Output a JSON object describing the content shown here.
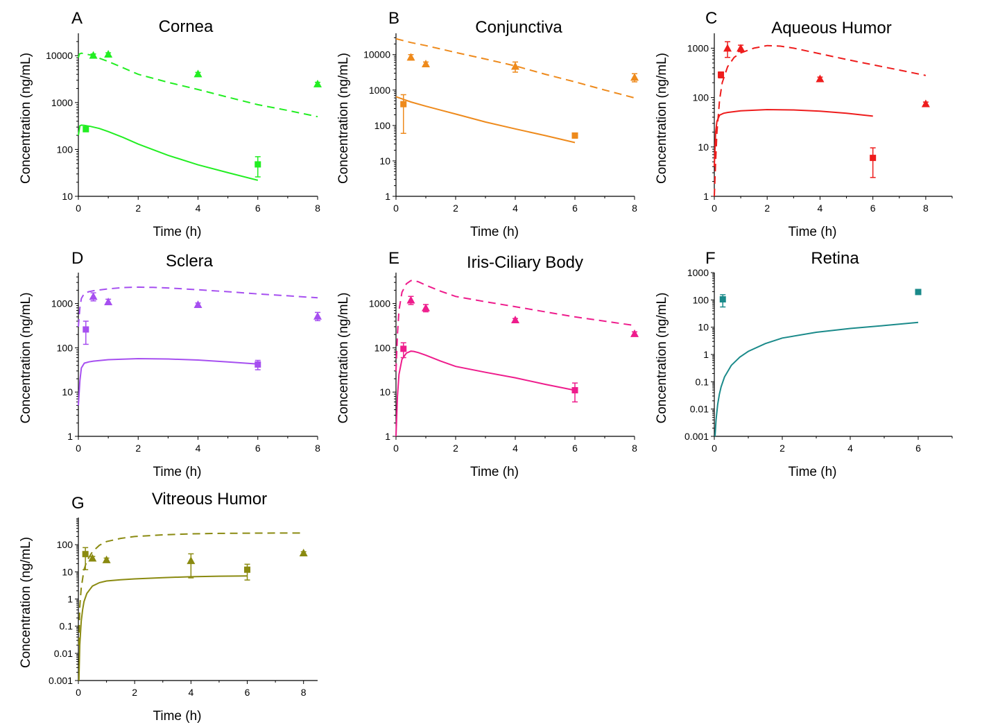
{
  "chart_data": [
    {
      "id": "A",
      "letter": "A",
      "type": "line",
      "title": "Cornea",
      "xlabel": "Time (h)",
      "ylabel": "Concentration (ng/mL)",
      "xlim": [
        0,
        8
      ],
      "xticks": [
        0,
        2,
        4,
        6,
        8
      ],
      "ylog": true,
      "ylim": [
        10,
        30000
      ],
      "yticks": [
        10,
        100,
        1000,
        10000
      ],
      "ytick_labels": [
        "10",
        "100",
        "1000",
        "10000"
      ],
      "color": "#22ee22",
      "series": [
        {
          "name": "dashed model",
          "style": "dashed",
          "x": [
            0,
            0.03,
            0.1,
            0.2,
            0.35,
            0.5,
            0.75,
            1,
            1.5,
            2,
            3,
            4,
            5,
            6,
            7,
            8
          ],
          "y": [
            9000,
            10800,
            11300,
            11000,
            10500,
            10000,
            8600,
            7500,
            5500,
            4000,
            2700,
            1900,
            1300,
            900,
            680,
            500
          ]
        },
        {
          "name": "solid model",
          "style": "solid",
          "x": [
            0,
            0.05,
            0.1,
            0.2,
            0.4,
            0.7,
            1,
            1.5,
            2,
            3,
            4,
            5,
            6
          ],
          "y": [
            200,
            320,
            330,
            325,
            310,
            280,
            240,
            180,
            130,
            75,
            47,
            32,
            22
          ]
        },
        {
          "name": "triangle observed",
          "style": "triangle",
          "x": [
            0.5,
            1,
            4,
            8
          ],
          "y": [
            10200,
            10800,
            4100,
            2500
          ],
          "err": [
            700,
            700,
            300,
            200
          ]
        },
        {
          "name": "square observed",
          "style": "square",
          "x": [
            0.25,
            6
          ],
          "y": [
            270,
            48
          ],
          "err": [
            30,
            22
          ]
        }
      ]
    },
    {
      "id": "B",
      "letter": "B",
      "type": "line",
      "title": "Conjunctiva",
      "xlabel": "Time (h)",
      "ylabel": "Concentration (ng/mL)",
      "xlim": [
        0,
        8
      ],
      "xticks": [
        0,
        2,
        4,
        6,
        8
      ],
      "ylog": true,
      "ylim": [
        1,
        40000
      ],
      "yticks": [
        1,
        10,
        100,
        1000,
        10000
      ],
      "ytick_labels": [
        "1",
        "10",
        "100",
        "1000",
        "10000"
      ],
      "color": "#ee8a1c",
      "series": [
        {
          "name": "dashed model",
          "style": "dashed",
          "x": [
            0,
            0.5,
            1,
            2,
            3,
            4,
            5,
            6,
            7,
            8
          ],
          "y": [
            28000,
            22000,
            18000,
            11500,
            7500,
            4800,
            2800,
            1700,
            1000,
            600
          ]
        },
        {
          "name": "solid model",
          "style": "solid",
          "x": [
            0,
            0.5,
            1,
            2,
            3,
            4,
            5,
            6
          ],
          "y": [
            650,
            460,
            350,
            210,
            125,
            80,
            52,
            33
          ]
        },
        {
          "name": "triangle observed",
          "style": "triangle",
          "x": [
            0.5,
            1,
            4,
            8
          ],
          "y": [
            8500,
            5500,
            4700,
            2300
          ],
          "err": [
            1500,
            700,
            1500,
            600
          ]
        },
        {
          "name": "square observed",
          "style": "square",
          "x": [
            0.25,
            6
          ],
          "y": [
            400,
            52
          ],
          "err": [
            340,
            8
          ]
        }
      ]
    },
    {
      "id": "C",
      "letter": "C",
      "type": "line",
      "title": "Aqueous Humor",
      "xlabel": "Time (h)",
      "ylabel": "Concentration (ng/mL)",
      "xlim": [
        0,
        9
      ],
      "xticks": [
        0,
        2,
        4,
        6,
        8
      ],
      "ylog": true,
      "ylim": [
        1,
        2000
      ],
      "yticks": [
        1,
        10,
        100,
        1000
      ],
      "ytick_labels": [
        "1",
        "10",
        "100",
        "1000"
      ],
      "color": "#ee1c1c",
      "series": [
        {
          "name": "dashed model",
          "style": "dashed",
          "x": [
            0,
            0.05,
            0.1,
            0.2,
            0.3,
            0.5,
            0.75,
            1,
            1.5,
            2,
            2.5,
            3,
            4,
            5,
            6,
            7,
            8
          ],
          "y": [
            1,
            5,
            20,
            90,
            200,
            420,
            650,
            800,
            1000,
            1130,
            1100,
            1000,
            770,
            590,
            460,
            360,
            280
          ]
        },
        {
          "name": "solid model",
          "style": "solid",
          "x": [
            0,
            0.05,
            0.1,
            0.2,
            0.35,
            0.5,
            1,
            2,
            3,
            4,
            5,
            6
          ],
          "y": [
            4,
            20,
            33,
            44,
            48,
            50,
            54,
            57,
            56,
            53,
            48,
            42
          ]
        },
        {
          "name": "triangle observed",
          "style": "triangle",
          "x": [
            0.5,
            1,
            4,
            8
          ],
          "y": [
            1000,
            1000,
            240,
            75
          ],
          "err": [
            350,
            150,
            20,
            6
          ]
        },
        {
          "name": "square observed",
          "style": "square",
          "x": [
            0.25,
            6
          ],
          "y": [
            290,
            6
          ],
          "err": [
            40,
            3.6
          ]
        }
      ]
    },
    {
      "id": "D",
      "letter": "D",
      "type": "line",
      "title": "Sclera",
      "xlabel": "Time (h)",
      "ylabel": "Concentration (ng/mL)",
      "xlim": [
        0,
        8
      ],
      "xticks": [
        0,
        2,
        4,
        6,
        8
      ],
      "ylog": true,
      "ylim": [
        1,
        5000
      ],
      "yticks": [
        1,
        10,
        100,
        1000
      ],
      "ytick_labels": [
        "1",
        "10",
        "100",
        "1000"
      ],
      "color": "#a64ff0",
      "series": [
        {
          "name": "dashed model",
          "style": "dashed",
          "x": [
            0,
            0.05,
            0.1,
            0.2,
            0.35,
            0.5,
            0.75,
            1,
            1.5,
            2,
            2.5,
            3,
            4,
            5,
            6,
            7,
            8
          ],
          "y": [
            300,
            800,
            1300,
            1700,
            1850,
            1950,
            2050,
            2150,
            2300,
            2350,
            2320,
            2250,
            2050,
            1850,
            1650,
            1500,
            1350
          ]
        },
        {
          "name": "solid model",
          "style": "solid",
          "x": [
            0,
            0.05,
            0.1,
            0.2,
            0.35,
            0.5,
            1,
            2,
            3,
            4,
            5,
            6
          ],
          "y": [
            5,
            18,
            35,
            45,
            48,
            50,
            54,
            57,
            56,
            53,
            48,
            43
          ]
        },
        {
          "name": "triangle observed",
          "style": "triangle",
          "x": [
            0.5,
            1,
            4,
            8
          ],
          "y": [
            1450,
            1100,
            950,
            520
          ],
          "err": [
            300,
            150,
            80,
            110
          ]
        },
        {
          "name": "square observed",
          "style": "square",
          "x": [
            0.25,
            6
          ],
          "y": [
            260,
            42
          ],
          "err": [
            140,
            10
          ]
        }
      ]
    },
    {
      "id": "E",
      "letter": "E",
      "type": "line",
      "title": "Iris-Ciliary Body",
      "xlabel": "Time (h)",
      "ylabel": "Concentration (ng/mL)",
      "xlim": [
        0,
        8
      ],
      "xticks": [
        0,
        2,
        4,
        6,
        8
      ],
      "ylog": true,
      "ylim": [
        1,
        5000
      ],
      "yticks": [
        1,
        10,
        100,
        1000
      ],
      "ytick_labels": [
        "1",
        "10",
        "100",
        "1000"
      ],
      "color": "#ee1c8c",
      "series": [
        {
          "name": "dashed model",
          "style": "dashed",
          "x": [
            0,
            0.05,
            0.1,
            0.2,
            0.35,
            0.5,
            0.6,
            0.75,
            1,
            1.5,
            2,
            3,
            4,
            5,
            6,
            7,
            8
          ],
          "y": [
            30,
            200,
            700,
            1800,
            2800,
            3300,
            3300,
            3100,
            2600,
            1900,
            1450,
            1100,
            850,
            650,
            500,
            400,
            320
          ]
        },
        {
          "name": "solid model",
          "style": "solid",
          "x": [
            0,
            0.05,
            0.1,
            0.2,
            0.35,
            0.5,
            0.6,
            0.75,
            1,
            1.5,
            2,
            3,
            4,
            5,
            6
          ],
          "y": [
            1,
            8,
            25,
            55,
            76,
            84,
            83,
            78,
            68,
            50,
            38,
            28,
            21,
            15,
            11
          ]
        },
        {
          "name": "triangle observed",
          "style": "triangle",
          "x": [
            0.5,
            1,
            4,
            8
          ],
          "y": [
            1200,
            800,
            430,
            210
          ],
          "err": [
            250,
            150,
            30,
            20
          ]
        },
        {
          "name": "square observed",
          "style": "square",
          "x": [
            0.25,
            6
          ],
          "y": [
            95,
            11
          ],
          "err": [
            35,
            5
          ]
        }
      ]
    },
    {
      "id": "F",
      "letter": "F",
      "type": "line",
      "title": "Retina",
      "xlabel": "Time (h)",
      "ylabel": "Concentration (ng/mL)",
      "xlim": [
        0,
        7
      ],
      "xticks": [
        0,
        2,
        4,
        6
      ],
      "ylog": true,
      "ylim": [
        0.001,
        1000
      ],
      "yticks": [
        0.001,
        0.01,
        0.1,
        1,
        10,
        100,
        1000
      ],
      "ytick_labels": [
        "0.001",
        "0.01",
        "0.1",
        "1",
        "10",
        "100",
        "1000"
      ],
      "color": "#1a8a8a",
      "series": [
        {
          "name": "solid model",
          "style": "solid",
          "x": [
            0.02,
            0.05,
            0.1,
            0.15,
            0.2,
            0.3,
            0.5,
            0.75,
            1,
            1.5,
            2,
            3,
            4,
            5,
            6
          ],
          "y": [
            0.001,
            0.004,
            0.015,
            0.035,
            0.065,
            0.15,
            0.4,
            0.8,
            1.3,
            2.5,
            4,
            6.5,
            9,
            11.5,
            15
          ]
        },
        {
          "name": "square observed",
          "style": "square",
          "x": [
            0.25,
            6
          ],
          "y": [
            105,
            195
          ],
          "err": [
            50,
            35
          ]
        }
      ]
    },
    {
      "id": "G",
      "letter": "G",
      "type": "line",
      "title": "Vitreous Humor",
      "xlabel": "Time (h)",
      "ylabel": "Concentration (ng/mL)",
      "xlim": [
        0,
        8.5
      ],
      "xticks": [
        0,
        2,
        4,
        6,
        8
      ],
      "ylog": true,
      "ylim": [
        0.001,
        1000
      ],
      "yticks": [
        0.001,
        0.01,
        0.1,
        1,
        10,
        100
      ],
      "ytick_labels": [
        "0.001",
        "0.01",
        "0.1",
        "1",
        "10",
        "100"
      ],
      "color": "#8a8a10",
      "series": [
        {
          "name": "dashed model",
          "style": "dashed",
          "x": [
            0.02,
            0.05,
            0.1,
            0.2,
            0.3,
            0.5,
            0.75,
            1,
            1.5,
            2,
            3,
            4,
            5,
            6,
            7,
            8
          ],
          "y": [
            0.02,
            0.5,
            2.5,
            12,
            25,
            55,
            95,
            130,
            170,
            200,
            230,
            250,
            260,
            265,
            268,
            270
          ]
        },
        {
          "name": "solid model",
          "style": "solid",
          "x": [
            0.02,
            0.05,
            0.1,
            0.15,
            0.2,
            0.3,
            0.5,
            0.75,
            1,
            1.5,
            2,
            3,
            4,
            5,
            6
          ],
          "y": [
            0.001,
            0.02,
            0.15,
            0.4,
            0.8,
            1.6,
            3,
            4,
            4.6,
            5.1,
            5.5,
            6.1,
            6.6,
            6.9,
            7.1
          ]
        },
        {
          "name": "triangle observed",
          "style": "triangle",
          "x": [
            0.5,
            1,
            4,
            8
          ],
          "y": [
            32,
            28,
            26,
            50
          ],
          "err": [
            5,
            4,
            20,
            5
          ]
        },
        {
          "name": "square observed",
          "style": "square",
          "x": [
            0.25,
            6
          ],
          "y": [
            45,
            12
          ],
          "err": [
            33,
            7
          ]
        }
      ]
    }
  ]
}
